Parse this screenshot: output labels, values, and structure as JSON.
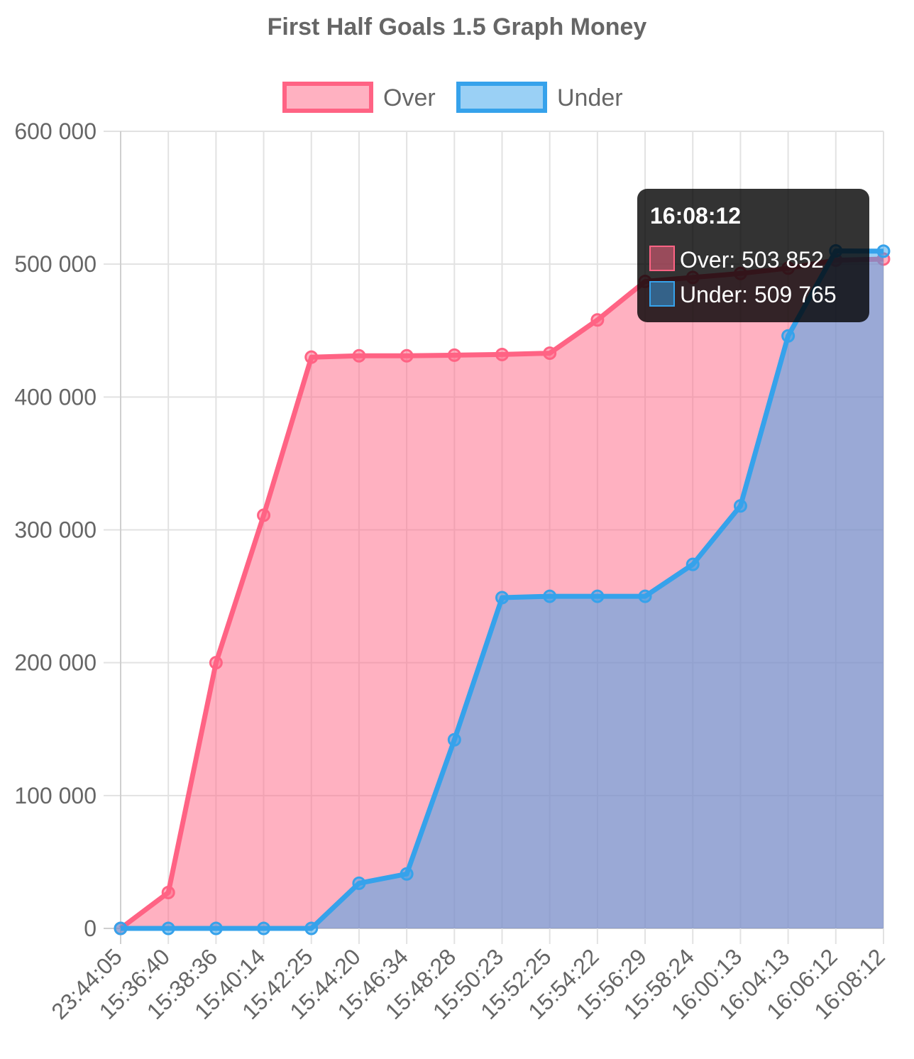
{
  "chart_data": {
    "type": "area",
    "title": "First Half Goals 1.5 Graph Money",
    "categories": [
      "23:44:05",
      "15:36:40",
      "15:38:36",
      "15:40:14",
      "15:42:25",
      "15:44:20",
      "15:46:34",
      "15:48:28",
      "15:50:23",
      "15:52:25",
      "15:54:22",
      "15:56:29",
      "15:58:24",
      "16:00:13",
      "16:04:13",
      "16:06:12",
      "16:08:12"
    ],
    "series": [
      {
        "name": "Over",
        "values": [
          0,
          27000,
          200000,
          311000,
          430000,
          431000,
          431000,
          431500,
          432000,
          433000,
          458000,
          487000,
          490000,
          493000,
          497000,
          503000,
          503852
        ]
      },
      {
        "name": "Under",
        "values": [
          0,
          0,
          0,
          0,
          0,
          34000,
          41000,
          142000,
          249000,
          250000,
          250000,
          250000,
          274000,
          318000,
          446000,
          510000,
          509765
        ]
      }
    ],
    "colors": {
      "Over": "#ff6384",
      "Under": "#36a2eb"
    },
    "ylim": [
      0,
      600000
    ],
    "y_ticks": [
      "0",
      "100 000",
      "200 000",
      "300 000",
      "400 000",
      "500 000",
      "600 000"
    ],
    "grid": true,
    "legend": "top-center",
    "tooltip": {
      "title": "16:08:12",
      "lines": [
        "Over: 503 852",
        "Under: 509 765"
      ]
    }
  }
}
